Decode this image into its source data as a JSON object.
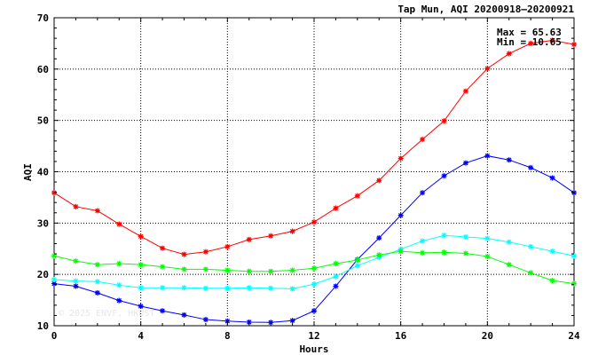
{
  "chart_data": {
    "type": "line",
    "title": "Tap Mun, AQI 20200918–20200921",
    "xlabel": "Hours",
    "ylabel": "AQI",
    "xlim": [
      0,
      24
    ],
    "ylim": [
      10,
      70
    ],
    "xticks": [
      0,
      4,
      8,
      12,
      16,
      20,
      24
    ],
    "yticks": [
      10,
      20,
      30,
      40,
      50,
      60,
      70
    ],
    "grid": true,
    "marker": "asterisk",
    "annotations": {
      "max": "Max = 65.63",
      "min": "Min = 10.65"
    },
    "watermark": "© 2025  ENVF, HKUST",
    "x": [
      0,
      1,
      2,
      3,
      4,
      5,
      6,
      7,
      8,
      9,
      10,
      11,
      12,
      13,
      14,
      15,
      16,
      17,
      18,
      19,
      20,
      21,
      22,
      23,
      24
    ],
    "series": [
      {
        "color": "#ff0000",
        "values": [
          35.9,
          33.2,
          32.4,
          29.8,
          27.4,
          25.1,
          23.9,
          24.4,
          25.4,
          26.8,
          27.5,
          28.4,
          30.2,
          32.9,
          35.3,
          38.3,
          42.6,
          46.3,
          49.9,
          55.7,
          60.1,
          63.0,
          65.0,
          65.6,
          64.8
        ]
      },
      {
        "color": "#0000ff",
        "values": [
          18.2,
          17.7,
          16.4,
          14.9,
          13.8,
          12.9,
          12.1,
          11.2,
          10.9,
          10.7,
          10.65,
          11.0,
          12.9,
          17.7,
          22.9,
          27.1,
          31.5,
          35.9,
          39.2,
          41.7,
          43.1,
          42.3,
          40.8,
          38.8,
          35.9
        ]
      },
      {
        "color": "#00ffff",
        "values": [
          19.0,
          18.7,
          18.6,
          17.9,
          17.4,
          17.4,
          17.4,
          17.3,
          17.3,
          17.4,
          17.3,
          17.2,
          18.1,
          19.6,
          21.7,
          23.3,
          24.9,
          26.5,
          27.6,
          27.3,
          27.0,
          26.3,
          25.4,
          24.5,
          23.6
        ]
      },
      {
        "color": "#00ff00",
        "values": [
          23.6,
          22.6,
          21.9,
          22.1,
          21.9,
          21.5,
          21.0,
          21.0,
          20.8,
          20.6,
          20.6,
          20.8,
          21.2,
          22.1,
          22.8,
          23.8,
          24.5,
          24.2,
          24.3,
          24.1,
          23.5,
          21.9,
          20.3,
          18.8,
          18.2
        ]
      }
    ]
  }
}
